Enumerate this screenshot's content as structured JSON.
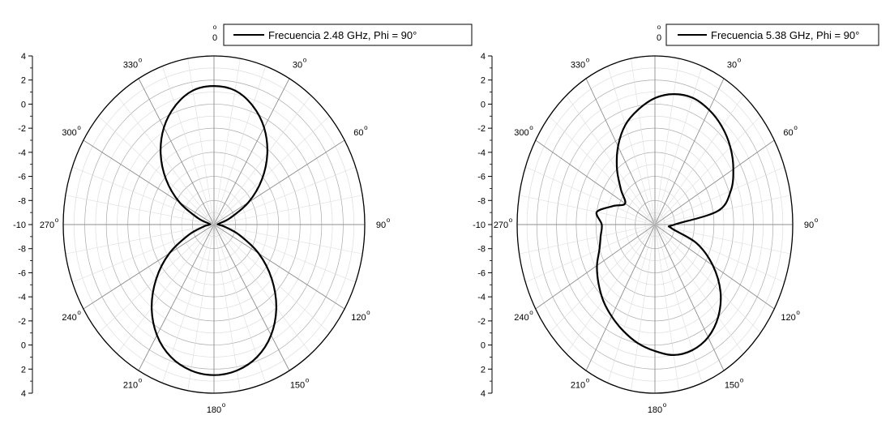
{
  "chart_data": [
    {
      "type": "polar-line",
      "series": [
        {
          "name": "Frecuencia 2.48 GHz, Phi = 90°",
          "theta": [
            0,
            10,
            20,
            30,
            40,
            50,
            60,
            70,
            80,
            90,
            100,
            110,
            120,
            130,
            140,
            150,
            160,
            170,
            180,
            190,
            200,
            210,
            220,
            230,
            240,
            250,
            260,
            270,
            280,
            290,
            300,
            310,
            320,
            330,
            340,
            350
          ],
          "values": [
            1.5,
            1.3,
            0.5,
            -0.7,
            -2.3,
            -4.2,
            -6.3,
            -8.4,
            -9.5,
            -9.6,
            -9.0,
            -7.5,
            -5.2,
            -3.0,
            -1.0,
            0.6,
            1.7,
            2.3,
            2.5,
            2.3,
            1.7,
            0.6,
            -1.0,
            -3.0,
            -5.2,
            -7.5,
            -9.0,
            -9.6,
            -9.5,
            -8.4,
            -6.3,
            -4.2,
            -2.3,
            -0.7,
            0.5,
            1.3
          ]
        }
      ],
      "radial_ticks": [
        "4",
        "2",
        "0",
        "-2",
        "-4",
        "-6",
        "-8",
        "-10",
        "-8",
        "-6",
        "-4",
        "-2",
        "0",
        "2",
        "4"
      ],
      "rlim": [
        -10,
        4
      ],
      "angle_labels": [
        "0",
        "30",
        "60",
        "90",
        "120",
        "150",
        "180",
        "210",
        "240",
        "270",
        "300",
        "330"
      ],
      "grid": true,
      "legend_position": "top"
    },
    {
      "type": "polar-line",
      "series": [
        {
          "name": "Frecuencia 5.38 GHz, Phi = 90°",
          "theta": [
            0,
            10,
            20,
            30,
            40,
            50,
            60,
            70,
            80,
            90,
            100,
            110,
            120,
            130,
            140,
            150,
            160,
            170,
            180,
            190,
            200,
            210,
            220,
            230,
            240,
            250,
            260,
            270,
            280,
            290,
            300,
            310,
            320,
            330,
            340,
            350
          ],
          "values": [
            0.5,
            1.0,
            1.2,
            1.0,
            0.6,
            0.0,
            -0.8,
            -1.8,
            -3.5,
            -8.0,
            -8.3,
            -5.5,
            -3.2,
            -1.3,
            0.0,
            0.8,
            1.1,
            1.0,
            0.5,
            0.0,
            -0.6,
            -1.2,
            -1.8,
            -2.5,
            -3.2,
            -4.0,
            -4.4,
            -4.6,
            -4.0,
            -5.5,
            -6.5,
            -5.5,
            -4.0,
            -2.5,
            -1.2,
            -0.3
          ]
        }
      ],
      "radial_ticks": [
        "4",
        "2",
        "0",
        "-2",
        "-4",
        "-6",
        "-8",
        "-10",
        "-8",
        "-6",
        "-4",
        "-2",
        "0",
        "2",
        "4"
      ],
      "rlim": [
        -10,
        4
      ],
      "angle_labels": [
        "0",
        "30",
        "60",
        "90",
        "120",
        "150",
        "180",
        "210",
        "240",
        "270",
        "300",
        "330"
      ],
      "grid": true,
      "legend_position": "top"
    }
  ],
  "colors": {
    "curve": "#000000",
    "major_grid": "#aaaaaa",
    "minor_grid": "#dddddd"
  }
}
